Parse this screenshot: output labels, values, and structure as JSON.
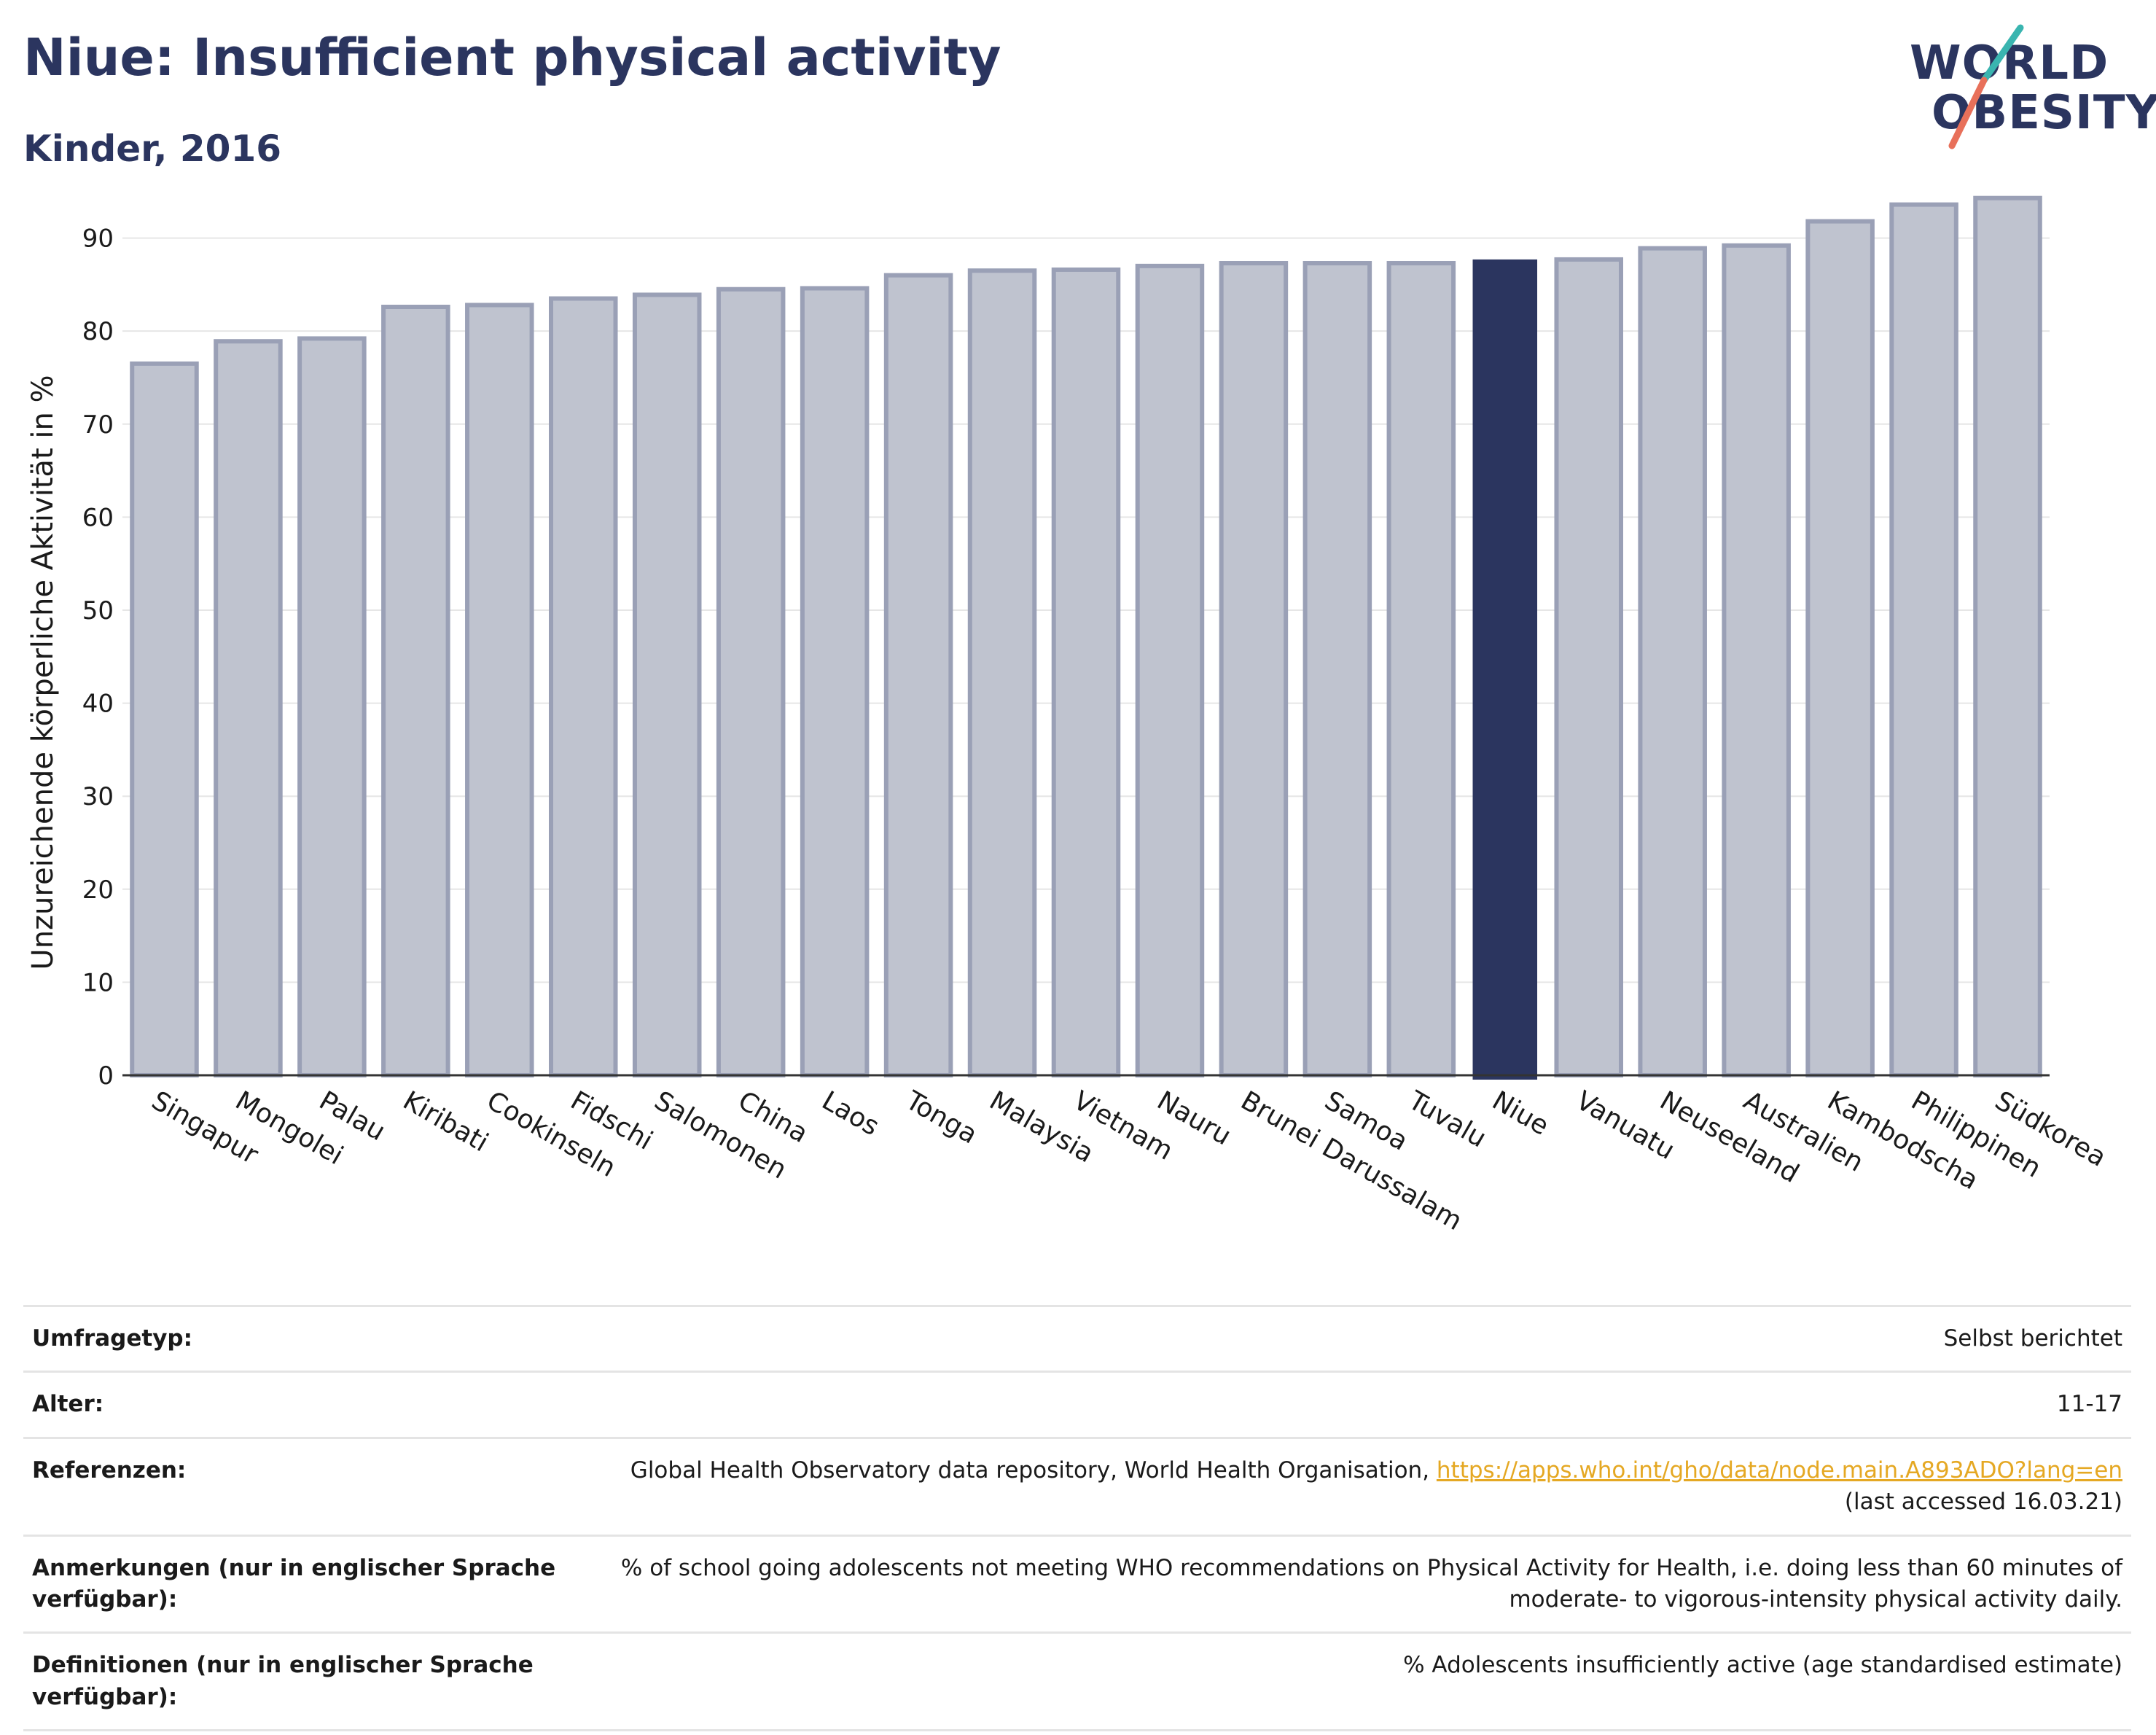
{
  "header": {
    "title": "Niue: Insufficient physical activity",
    "subtitle": "Kinder, 2016"
  },
  "logo": {
    "line1": "WORLD",
    "line2": "OBESITY"
  },
  "chart_data": {
    "type": "bar",
    "ylabel": "Unzureichende körperliche Aktivität in %",
    "ylim": [
      0,
      96
    ],
    "yticks": [
      0,
      10,
      20,
      30,
      40,
      50,
      60,
      70,
      80,
      90
    ],
    "grid": true,
    "categories": [
      "Singapur",
      "Mongolei",
      "Palau",
      "Kiribati",
      "Cookinseln",
      "Fidschi",
      "Salomonen",
      "China",
      "Laos",
      "Tonga",
      "Malaysia",
      "Vietnam",
      "Nauru",
      "Brunei Darussalam",
      "Samoa",
      "Tuvalu",
      "Niue",
      "Vanuatu",
      "Neuseeland",
      "Australien",
      "Kambodscha",
      "Philippinen",
      "Südkorea"
    ],
    "values": [
      76.5,
      78.9,
      79.2,
      82.6,
      82.8,
      83.5,
      83.9,
      84.5,
      84.6,
      86.0,
      86.5,
      86.6,
      87.0,
      87.3,
      87.3,
      87.3,
      87.7,
      87.7,
      88.9,
      89.2,
      91.8,
      93.6,
      94.3
    ],
    "highlight": "Niue",
    "colors": {
      "highlight": "#2b355f",
      "bar": "#bfc3cf",
      "bar_border": "#9aa0b6"
    }
  },
  "meta": [
    {
      "label": "Umfragetyp:",
      "value": "Selbst berichtet"
    },
    {
      "label": "Alter:",
      "value": "11-17"
    },
    {
      "label": "Referenzen:",
      "value": "Global Health Observatory data repository, World Health Organisation, ",
      "link": "https://apps.who.int/gho/data/node.main.A893ADO?lang=en",
      "value2": "(last accessed 16.03.21)"
    },
    {
      "label": "Anmerkungen (nur in englischer Sprache verfügbar):",
      "value": "% of school going adolescents not meeting WHO recommendations on Physical Activity for Health, i.e. doing less than 60 minutes of moderate- to vigorous-intensity physical activity daily."
    },
    {
      "label": "Definitionen (nur in englischer Sprache verfügbar):",
      "value": "% Adolescents insufficiently active (age standardised estimate)"
    }
  ]
}
